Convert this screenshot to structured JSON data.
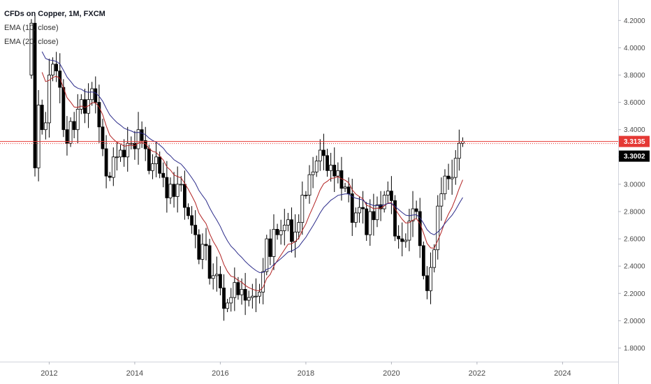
{
  "legend": {
    "title": "CFDs on Copper, 1M, FXCM",
    "ema10": "EMA (10, close)",
    "ema20": "EMA (20, close)"
  },
  "colors": {
    "up": "#ffffff",
    "down": "#000000",
    "wick": "#000000",
    "ema10": "#b22222",
    "ema20": "#2b2b8a",
    "price_line": "#e53935",
    "last_tag_bg": "#e53935",
    "prev_tag_bg": "#000000"
  },
  "chart_data": {
    "type": "candlestick",
    "title": "CFDs on Copper, 1M, FXCM",
    "y_ticks": [
      "4.2000",
      "4.0000",
      "3.8000",
      "3.6000",
      "3.4000",
      "3.2000",
      "3.0000",
      "2.8000",
      "2.6000",
      "2.4000",
      "2.2000",
      "2.0000",
      "1.8000"
    ],
    "x_ticks": [
      "2012",
      "2014",
      "2016",
      "2018",
      "2020",
      "2022",
      "2024"
    ],
    "x_tick_years": [
      2012,
      2014,
      2016,
      2018,
      2020,
      2022,
      2024
    ],
    "ylim": [
      1.7,
      4.35
    ],
    "xlim": [
      2010.85,
      2025.3
    ],
    "start": {
      "year": 2011,
      "month": 8
    },
    "close": [
      4.18,
      3.12,
      3.58,
      3.4,
      3.45,
      3.8,
      3.88,
      3.83,
      3.71,
      3.4,
      3.3,
      3.46,
      3.4,
      3.55,
      3.62,
      3.52,
      3.62,
      3.7,
      3.6,
      3.42,
      3.26,
      3.06,
      3.05,
      3.2,
      3.2,
      3.25,
      3.2,
      3.3,
      3.3,
      3.26,
      3.4,
      3.32,
      3.26,
      3.1,
      3.15,
      3.2,
      3.08,
      3.05,
      2.9,
      3.0,
      2.91,
      3.0,
      3.0,
      2.83,
      2.77,
      2.7,
      2.63,
      2.45,
      2.56,
      2.55,
      2.31,
      2.33,
      2.34,
      2.24,
      2.09,
      2.13,
      2.17,
      2.28,
      2.19,
      2.23,
      2.15,
      2.17,
      2.18,
      2.18,
      2.21,
      2.36,
      2.6,
      2.47,
      2.67,
      2.63,
      2.66,
      2.7,
      2.74,
      2.58,
      2.65,
      2.72,
      2.92,
      2.92,
      3.07,
      3.09,
      3.17,
      3.25,
      3.21,
      3.1,
      3.14,
      3.06,
      3.1,
      2.97,
      2.98,
      2.93,
      2.72,
      2.79,
      2.83,
      2.82,
      2.63,
      2.8,
      2.74,
      2.85,
      2.82,
      2.92,
      2.95,
      2.88,
      2.62,
      2.6,
      2.58,
      2.59,
      2.73,
      2.82,
      2.8,
      2.55,
      2.33,
      2.22,
      2.39,
      2.52,
      2.84,
      2.93,
      3.06,
      3.04,
      3.05,
      3.19,
      3.3002,
      3.3135
    ],
    "ema10_label": "EMA (10, close)",
    "ema20_label": "EMA (20, close)",
    "last_price": "3.3135",
    "prev_close": "3.3002",
    "legend_position": "top-left",
    "grid": false
  }
}
